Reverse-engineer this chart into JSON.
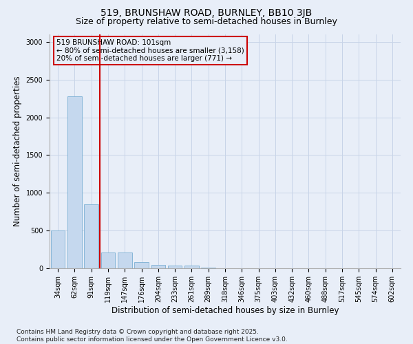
{
  "title": "519, BRUNSHAW ROAD, BURNLEY, BB10 3JB",
  "subtitle": "Size of property relative to semi-detached houses in Burnley",
  "xlabel": "Distribution of semi-detached houses by size in Burnley",
  "ylabel": "Number of semi-detached properties",
  "categories": [
    "34sqm",
    "62sqm",
    "91sqm",
    "119sqm",
    "147sqm",
    "176sqm",
    "204sqm",
    "233sqm",
    "261sqm",
    "289sqm",
    "318sqm",
    "346sqm",
    "375sqm",
    "403sqm",
    "432sqm",
    "460sqm",
    "488sqm",
    "517sqm",
    "545sqm",
    "574sqm",
    "602sqm"
  ],
  "values": [
    500,
    2280,
    850,
    210,
    210,
    80,
    50,
    40,
    35,
    5,
    0,
    0,
    0,
    0,
    0,
    0,
    0,
    0,
    0,
    0,
    0
  ],
  "bar_color": "#c5d8ee",
  "bar_edge_color": "#7bafd4",
  "bar_edge_width": 0.6,
  "grid_color": "#c8d4e8",
  "background_color": "#e8eef8",
  "red_line_x": 2.5,
  "red_line_color": "#cc0000",
  "annotation_line1": "519 BRUNSHAW ROAD: 101sqm",
  "annotation_line2": "← 80% of semi-detached houses are smaller (3,158)",
  "annotation_line3": "20% of semi-detached houses are larger (771) →",
  "annotation_box_color": "#cc0000",
  "ylim": [
    0,
    3100
  ],
  "yticks": [
    0,
    500,
    1000,
    1500,
    2000,
    2500,
    3000
  ],
  "footnote": "Contains HM Land Registry data © Crown copyright and database right 2025.\nContains public sector information licensed under the Open Government Licence v3.0.",
  "title_fontsize": 10,
  "subtitle_fontsize": 9,
  "axis_label_fontsize": 8.5,
  "tick_fontsize": 7,
  "annotation_fontsize": 7.5,
  "footnote_fontsize": 6.5
}
